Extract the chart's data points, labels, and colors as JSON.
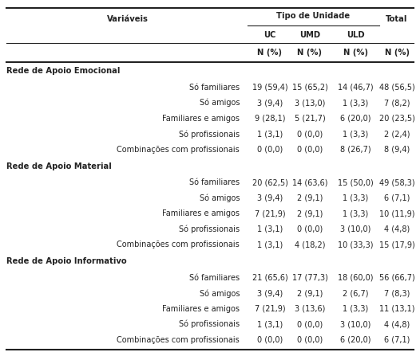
{
  "title_col": "Variáveis",
  "header_group": "Tipo de Unidade",
  "col_headers": [
    "UC",
    "UMD",
    "ULD",
    "Total"
  ],
  "col_subheaders": [
    "N (%)",
    "N (%)",
    "N (%)",
    "N (%)"
  ],
  "sections": [
    {
      "section_title": "Rede de Apoio Emocional",
      "rows": [
        [
          "Só familiares",
          "19 (59,4)",
          "15 (65,2)",
          "14 (46,7)",
          "48 (56,5)"
        ],
        [
          "Só amigos",
          "3 (9,4)",
          "3 (13,0)",
          "1 (3,3)",
          "7 (8,2)"
        ],
        [
          "Familiares e amigos",
          "9 (28,1)",
          "5 (21,7)",
          "6 (20,0)",
          "20 (23,5)"
        ],
        [
          "Só profissionais",
          "1 (3,1)",
          "0 (0,0)",
          "1 (3,3)",
          "2 (2,4)"
        ],
        [
          "Combinações com profissionais",
          "0 (0,0)",
          "0 (0,0)",
          "8 (26,7)",
          "8 (9,4)"
        ]
      ]
    },
    {
      "section_title": "Rede de Apoio Material",
      "rows": [
        [
          "Só familiares",
          "20 (62,5)",
          "14 (63,6)",
          "15 (50,0)",
          "49 (58,3)"
        ],
        [
          "Só amigos",
          "3 (9,4)",
          "2 (9,1)",
          "1 (3,3)",
          "6 (7,1)"
        ],
        [
          "Familiares e amigos",
          "7 (21,9)",
          "2 (9,1)",
          "1 (3,3)",
          "10 (11,9)"
        ],
        [
          "Só profissionais",
          "1 (3,1)",
          "0 (0,0)",
          "3 (10,0)",
          "4 (4,8)"
        ],
        [
          "Combinações com profissionais",
          "1 (3,1)",
          "4 (18,2)",
          "10 (33,3)",
          "15 (17,9)"
        ]
      ]
    },
    {
      "section_title": "Rede de Apoio Informativo",
      "rows": [
        [
          "Só familiares",
          "21 (65,6)",
          "17 (77,3)",
          "18 (60,0)",
          "56 (66,7)"
        ],
        [
          "Só amigos",
          "3 (9,4)",
          "2 (9,1)",
          "2 (6,7)",
          "7 (8,3)"
        ],
        [
          "Familiares e amigos",
          "7 (21,9)",
          "3 (13,6)",
          "1 (3,3)",
          "11 (13,1)"
        ],
        [
          "Só profissionais",
          "1 (3,1)",
          "0 (0,0)",
          "3 (10,0)",
          "4 (4,8)"
        ],
        [
          "Combinações com profissionais",
          "0 (0,0)",
          "0 (0,0)",
          "6 (20,0)",
          "6 (7,1)"
        ]
      ]
    }
  ],
  "bg_color": "#ffffff",
  "line_color": "#222222",
  "text_color": "#222222",
  "header_fontsize": 7.2,
  "body_fontsize": 7.0,
  "section_fontsize": 7.2
}
